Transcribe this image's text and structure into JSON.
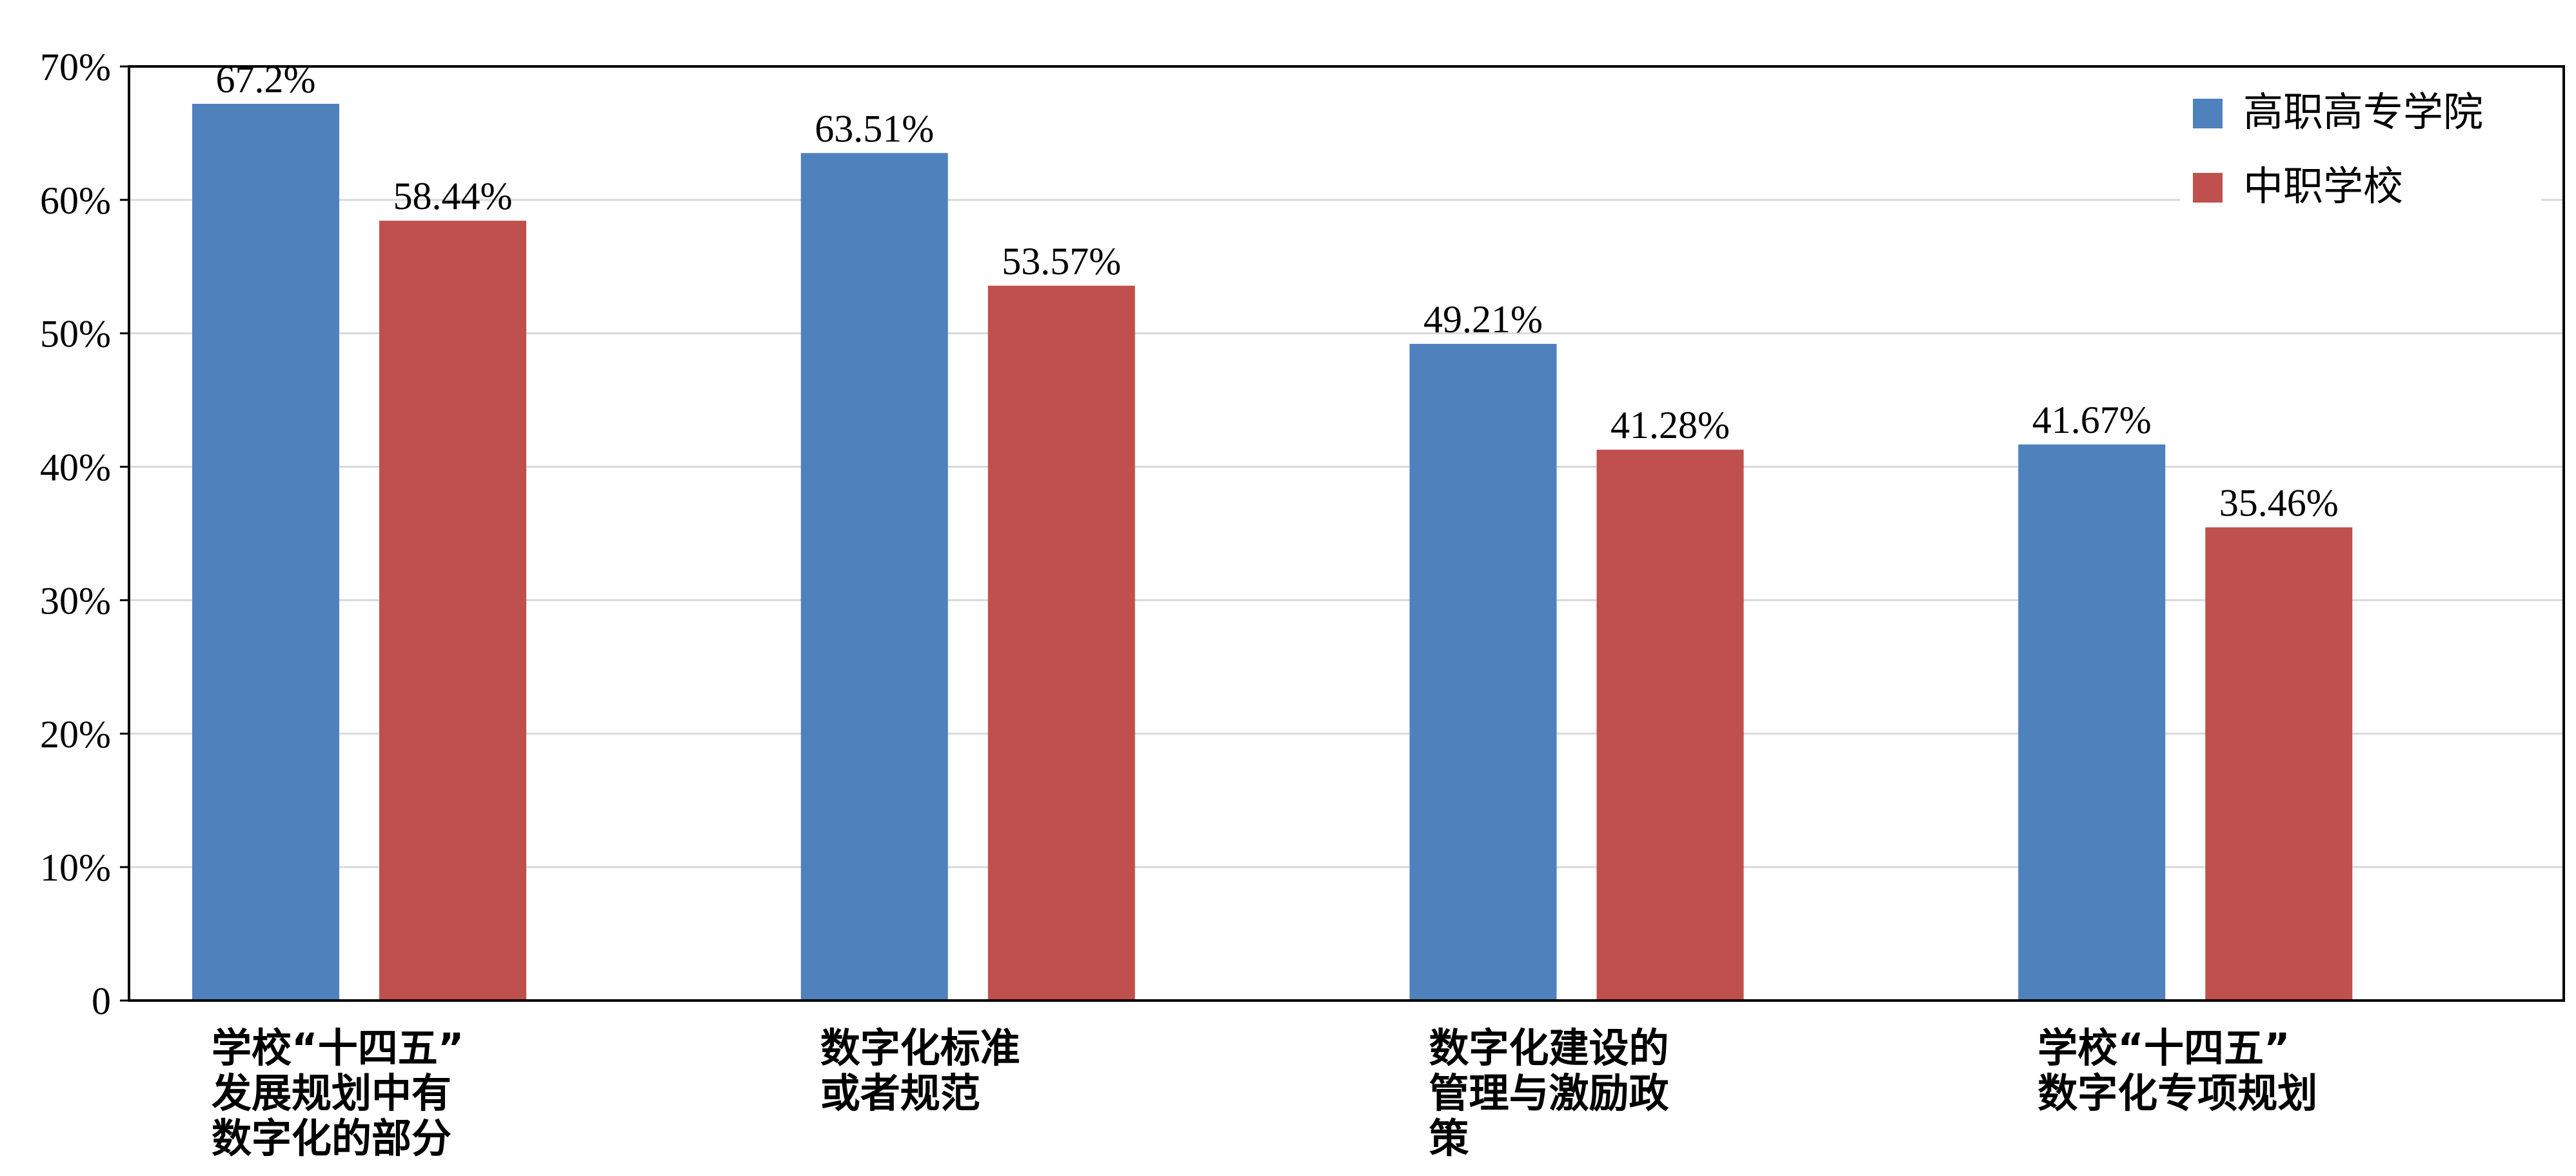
{
  "chart_data": {
    "type": "bar",
    "categories": [
      [
        "学校“十四五”",
        "发展规划中有",
        "数字化的部分"
      ],
      [
        "数字化标准",
        "或者规范"
      ],
      [
        "数字化建设的",
        "管理与激励政",
        "策"
      ],
      [
        "学校“十四五”",
        "数字化专项规划"
      ]
    ],
    "series": [
      {
        "name": "高职高专学院",
        "color": "#4F81BD",
        "values": [
          67.2,
          63.51,
          49.21,
          41.67
        ],
        "labels": [
          "67.2%",
          "63.51%",
          "49.21%",
          "41.67%"
        ]
      },
      {
        "name": "中职学校",
        "color": "#C0504D",
        "values": [
          58.44,
          53.57,
          41.28,
          35.46
        ],
        "labels": [
          "58.44%",
          "53.57%",
          "41.28%",
          "35.46%"
        ]
      }
    ],
    "ylim": [
      0,
      70
    ],
    "yticks": [
      0,
      10,
      20,
      30,
      40,
      50,
      60,
      70
    ],
    "ytick_labels": [
      "0",
      "10%",
      "20%",
      "30%",
      "40%",
      "50%",
      "60%",
      "70%"
    ],
    "grid": true,
    "legend_position": "top-right"
  }
}
